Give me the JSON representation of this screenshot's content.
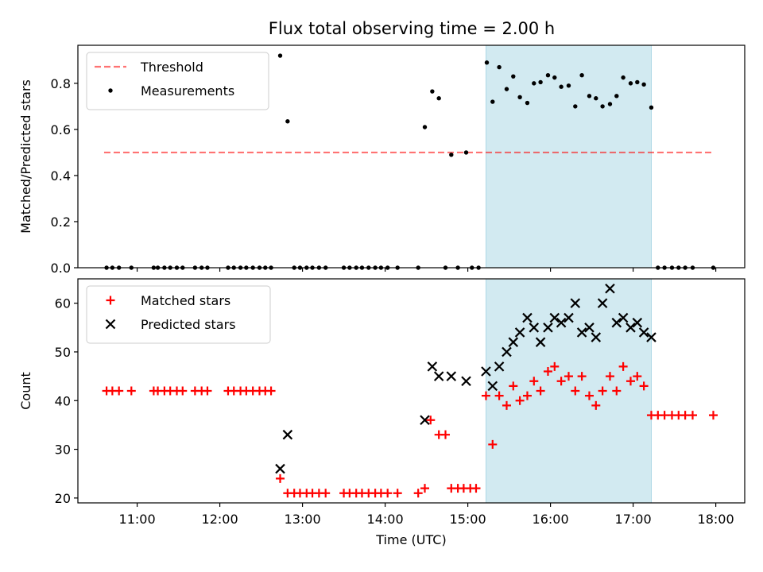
{
  "chart_data": [
    {
      "type": "scatter",
      "title": "Flux total observing time = 2.00 h",
      "xlabel": "",
      "ylabel": "Matched/Predicted stars",
      "xlim": [
        10.283,
        18.35
      ],
      "ylim": [
        0,
        0.965
      ],
      "yticks": [
        0.0,
        0.2,
        0.4,
        0.6,
        0.8
      ],
      "ytick_labels": [
        "0.0",
        "0.2",
        "0.4",
        "0.6",
        "0.8"
      ],
      "xticks": [
        11,
        12,
        13,
        14,
        15,
        16,
        17,
        18
      ],
      "xtick_labels_visible": false,
      "legend_position": "upper-left",
      "shaded_region": {
        "x": [
          15.22,
          17.22
        ],
        "color": "#add8e6"
      },
      "threshold": {
        "name": "Threshold",
        "value": 0.5,
        "x": [
          10.6,
          17.95
        ],
        "color": "#ff0000",
        "style": "dashed"
      },
      "series": [
        {
          "name": "Measurements",
          "color": "#000000",
          "marker": "dot",
          "points": [
            [
              10.63,
              0
            ],
            [
              10.7,
              0
            ],
            [
              10.78,
              0
            ],
            [
              10.93,
              0
            ],
            [
              11.2,
              0
            ],
            [
              11.25,
              0
            ],
            [
              11.33,
              0
            ],
            [
              11.4,
              0
            ],
            [
              11.48,
              0
            ],
            [
              11.55,
              0
            ],
            [
              11.7,
              0
            ],
            [
              11.78,
              0
            ],
            [
              11.85,
              0
            ],
            [
              12.1,
              0
            ],
            [
              12.17,
              0
            ],
            [
              12.25,
              0
            ],
            [
              12.32,
              0
            ],
            [
              12.4,
              0
            ],
            [
              12.48,
              0
            ],
            [
              12.55,
              0
            ],
            [
              12.62,
              0
            ],
            [
              12.73,
              0.92
            ],
            [
              12.82,
              0.635
            ],
            [
              12.9,
              0
            ],
            [
              12.97,
              0
            ],
            [
              13.05,
              0
            ],
            [
              13.12,
              0
            ],
            [
              13.2,
              0
            ],
            [
              13.28,
              0
            ],
            [
              13.5,
              0
            ],
            [
              13.57,
              0
            ],
            [
              13.65,
              0
            ],
            [
              13.72,
              0
            ],
            [
              13.8,
              0
            ],
            [
              13.88,
              0
            ],
            [
              13.95,
              0
            ],
            [
              14.03,
              0
            ],
            [
              14.15,
              0
            ],
            [
              14.4,
              0
            ],
            [
              14.48,
              0.61
            ],
            [
              14.57,
              0.765
            ],
            [
              14.65,
              0.735
            ],
            [
              14.73,
              0
            ],
            [
              14.8,
              0.49
            ],
            [
              14.88,
              0
            ],
            [
              14.98,
              0.5
            ],
            [
              15.05,
              0
            ],
            [
              15.13,
              0
            ],
            [
              15.23,
              0.89
            ],
            [
              15.3,
              0.72
            ],
            [
              15.38,
              0.87
            ],
            [
              15.47,
              0.775
            ],
            [
              15.55,
              0.83
            ],
            [
              15.63,
              0.74
            ],
            [
              15.72,
              0.715
            ],
            [
              15.8,
              0.8
            ],
            [
              15.88,
              0.805
            ],
            [
              15.97,
              0.835
            ],
            [
              16.05,
              0.825
            ],
            [
              16.13,
              0.785
            ],
            [
              16.22,
              0.79
            ],
            [
              16.3,
              0.7
            ],
            [
              16.38,
              0.835
            ],
            [
              16.47,
              0.745
            ],
            [
              16.55,
              0.735
            ],
            [
              16.63,
              0.7
            ],
            [
              16.72,
              0.71
            ],
            [
              16.8,
              0.745
            ],
            [
              16.88,
              0.825
            ],
            [
              16.97,
              0.8
            ],
            [
              17.05,
              0.805
            ],
            [
              17.13,
              0.795
            ],
            [
              17.22,
              0.695
            ],
            [
              17.3,
              0
            ],
            [
              17.38,
              0
            ],
            [
              17.47,
              0
            ],
            [
              17.55,
              0
            ],
            [
              17.63,
              0
            ],
            [
              17.72,
              0
            ],
            [
              17.97,
              0
            ]
          ]
        }
      ]
    },
    {
      "type": "scatter",
      "title": "",
      "xlabel": "Time (UTC)",
      "ylabel": "Count",
      "xlim": [
        10.283,
        18.35
      ],
      "ylim": [
        19,
        65
      ],
      "yticks": [
        20,
        30,
        40,
        50,
        60
      ],
      "ytick_labels": [
        "20",
        "30",
        "40",
        "50",
        "60"
      ],
      "xticks": [
        11,
        12,
        13,
        14,
        15,
        16,
        17,
        18
      ],
      "xtick_labels": [
        "11:00",
        "12:00",
        "13:00",
        "14:00",
        "15:00",
        "16:00",
        "17:00",
        "18:00"
      ],
      "legend_position": "upper-left",
      "shaded_region": {
        "x": [
          15.22,
          17.22
        ],
        "color": "#add8e6"
      },
      "series": [
        {
          "name": "Matched stars",
          "color": "#ff0000",
          "marker": "plus",
          "points": [
            [
              10.63,
              42
            ],
            [
              10.7,
              42
            ],
            [
              10.78,
              42
            ],
            [
              10.93,
              42
            ],
            [
              11.2,
              42
            ],
            [
              11.25,
              42
            ],
            [
              11.33,
              42
            ],
            [
              11.4,
              42
            ],
            [
              11.48,
              42
            ],
            [
              11.55,
              42
            ],
            [
              11.7,
              42
            ],
            [
              11.78,
              42
            ],
            [
              11.85,
              42
            ],
            [
              12.1,
              42
            ],
            [
              12.17,
              42
            ],
            [
              12.25,
              42
            ],
            [
              12.32,
              42
            ],
            [
              12.4,
              42
            ],
            [
              12.48,
              42
            ],
            [
              12.55,
              42
            ],
            [
              12.62,
              42
            ],
            [
              12.73,
              24
            ],
            [
              12.82,
              21
            ],
            [
              12.9,
              21
            ],
            [
              12.97,
              21
            ],
            [
              13.05,
              21
            ],
            [
              13.12,
              21
            ],
            [
              13.2,
              21
            ],
            [
              13.28,
              21
            ],
            [
              13.5,
              21
            ],
            [
              13.57,
              21
            ],
            [
              13.65,
              21
            ],
            [
              13.72,
              21
            ],
            [
              13.8,
              21
            ],
            [
              13.88,
              21
            ],
            [
              13.95,
              21
            ],
            [
              14.03,
              21
            ],
            [
              14.15,
              21
            ],
            [
              14.4,
              21
            ],
            [
              14.48,
              22
            ],
            [
              14.55,
              36
            ],
            [
              14.65,
              33
            ],
            [
              14.73,
              33
            ],
            [
              14.8,
              22
            ],
            [
              14.88,
              22
            ],
            [
              14.95,
              22
            ],
            [
              15.03,
              22
            ],
            [
              15.1,
              22
            ],
            [
              15.22,
              41
            ],
            [
              15.3,
              31
            ],
            [
              15.38,
              41
            ],
            [
              15.47,
              39
            ],
            [
              15.55,
              43
            ],
            [
              15.63,
              40
            ],
            [
              15.72,
              41
            ],
            [
              15.8,
              44
            ],
            [
              15.88,
              42
            ],
            [
              15.97,
              46
            ],
            [
              16.05,
              47
            ],
            [
              16.13,
              44
            ],
            [
              16.22,
              45
            ],
            [
              16.3,
              42
            ],
            [
              16.38,
              45
            ],
            [
              16.47,
              41
            ],
            [
              16.55,
              39
            ],
            [
              16.63,
              42
            ],
            [
              16.72,
              45
            ],
            [
              16.8,
              42
            ],
            [
              16.88,
              47
            ],
            [
              16.97,
              44
            ],
            [
              17.05,
              45
            ],
            [
              17.13,
              43
            ],
            [
              17.22,
              37
            ],
            [
              17.3,
              37
            ],
            [
              17.38,
              37
            ],
            [
              17.47,
              37
            ],
            [
              17.55,
              37
            ],
            [
              17.63,
              37
            ],
            [
              17.72,
              37
            ],
            [
              17.97,
              37
            ]
          ]
        },
        {
          "name": "Predicted stars",
          "color": "#000000",
          "marker": "x",
          "points": [
            [
              12.73,
              26
            ],
            [
              12.82,
              33
            ],
            [
              14.48,
              36
            ],
            [
              14.57,
              47
            ],
            [
              14.65,
              45
            ],
            [
              14.8,
              45
            ],
            [
              14.98,
              44
            ],
            [
              15.22,
              46
            ],
            [
              15.3,
              43
            ],
            [
              15.38,
              47
            ],
            [
              15.47,
              50
            ],
            [
              15.55,
              52
            ],
            [
              15.63,
              54
            ],
            [
              15.72,
              57
            ],
            [
              15.8,
              55
            ],
            [
              15.88,
              52
            ],
            [
              15.97,
              55
            ],
            [
              16.05,
              57
            ],
            [
              16.13,
              56
            ],
            [
              16.22,
              57
            ],
            [
              16.3,
              60
            ],
            [
              16.38,
              54
            ],
            [
              16.47,
              55
            ],
            [
              16.55,
              53
            ],
            [
              16.63,
              60
            ],
            [
              16.72,
              63
            ],
            [
              16.8,
              56
            ],
            [
              16.88,
              57
            ],
            [
              16.97,
              55
            ],
            [
              17.05,
              56
            ],
            [
              17.13,
              54
            ],
            [
              17.22,
              53
            ]
          ]
        }
      ]
    }
  ]
}
